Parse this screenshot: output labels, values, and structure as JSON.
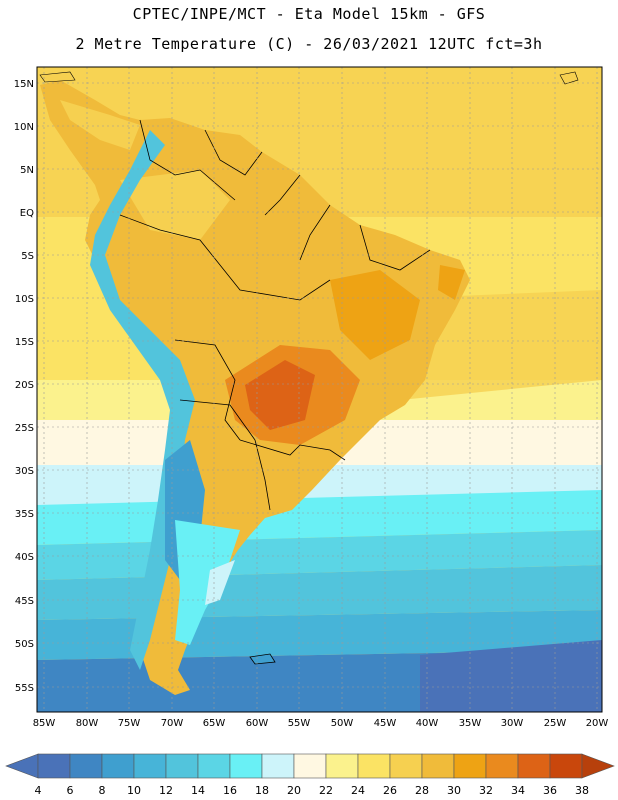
{
  "title_line1": "CPTEC/INPE/MCT -  Eta Model 15km - GFS",
  "title_line2": "2 Metre Temperature (C) - 26/03/2021 12UTC fct=3h",
  "lat_labels": [
    "15N",
    "10N",
    "5N",
    "EQ",
    "5S",
    "10S",
    "15S",
    "20S",
    "25S",
    "30S",
    "35S",
    "40S",
    "45S",
    "50S",
    "55S"
  ],
  "lon_labels": [
    "85W",
    "80W",
    "75W",
    "70W",
    "65W",
    "60W",
    "55W",
    "50W",
    "45W",
    "40W",
    "35W",
    "30W",
    "25W",
    "20W"
  ],
  "colorbar": {
    "labels": [
      "4",
      "6",
      "8",
      "10",
      "12",
      "14",
      "16",
      "18",
      "20",
      "22",
      "24",
      "26",
      "28",
      "30",
      "32",
      "34",
      "36",
      "38"
    ],
    "colors": [
      "#4a72b8",
      "#3f86c3",
      "#3f9fcf",
      "#47b4d8",
      "#52c4dc",
      "#5bd5e5",
      "#69f0f5",
      "#cdf4fa",
      "#fff8e2",
      "#fbf28d",
      "#fbe364",
      "#f6d050",
      "#f0bb3a",
      "#eea314",
      "#ea8a1e",
      "#dd6316",
      "#c9470c",
      "#b7400c"
    ]
  },
  "colors": {
    "ocean_warm": "#f6d050",
    "ocean_mild": "#fbe364",
    "ocean_cool": "#52c4dc",
    "ocean_cold": "#3f86c3",
    "land_hot": "#ea8a1e",
    "border": "#000000"
  }
}
